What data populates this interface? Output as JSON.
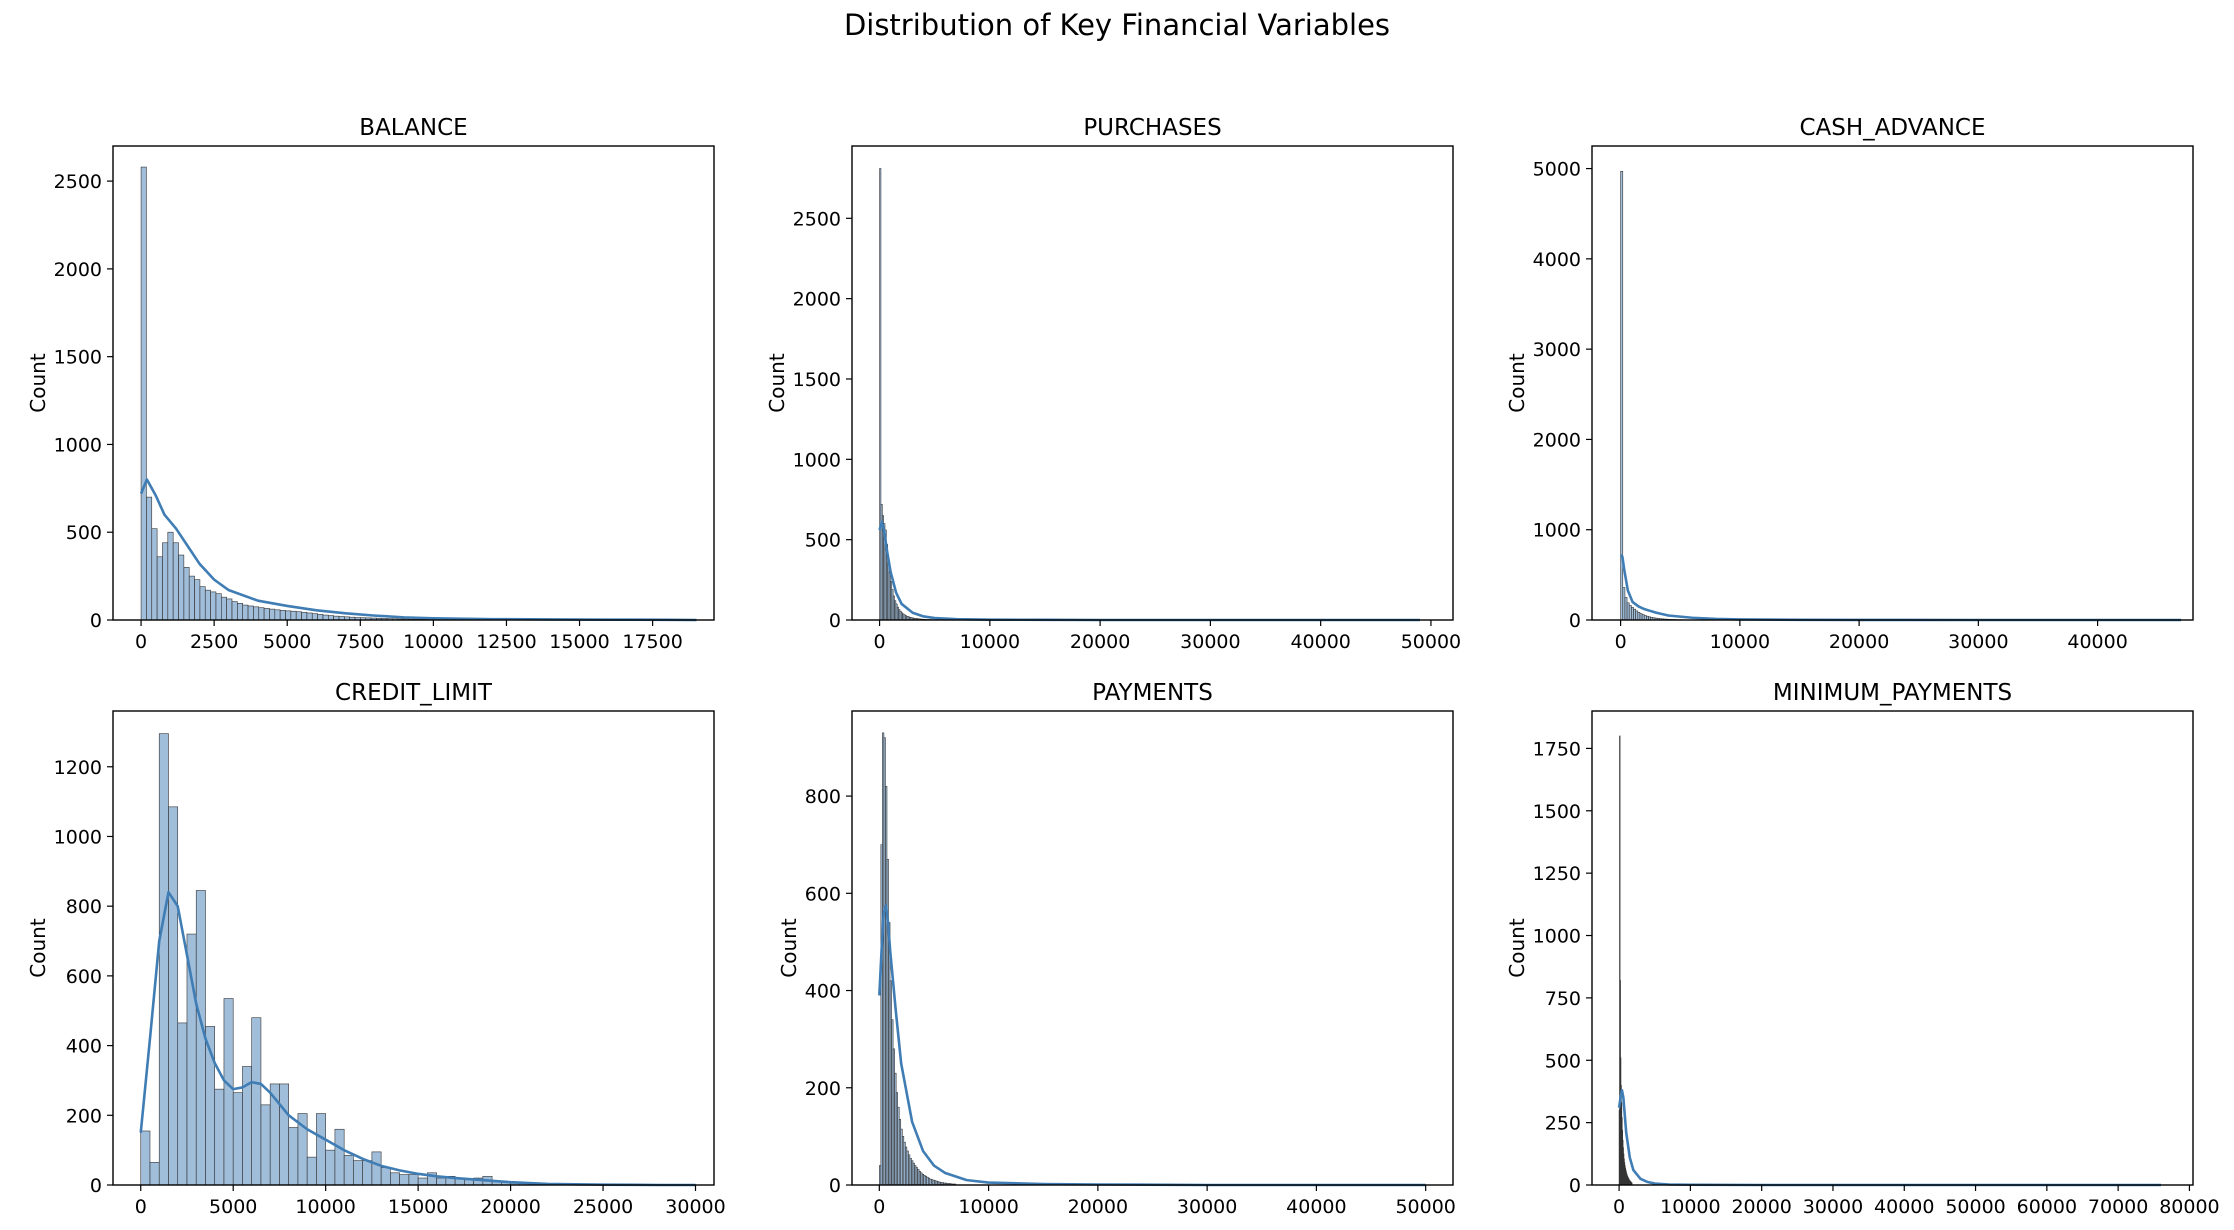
{
  "figure": {
    "title": "Distribution of Key Financial Variables"
  },
  "style": {
    "bar_fill": "#8fb1d4",
    "bar_edge": "#333333",
    "kde_color": "#3f7db4",
    "axis_color": "#000000"
  },
  "chart_data": [
    {
      "type": "histogram",
      "title": "BALANCE",
      "xlabel": "",
      "ylabel": "Count",
      "xlim": [
        -960,
        19600
      ],
      "ylim": [
        0,
        2700
      ],
      "xticks": [
        0,
        2500,
        5000,
        7500,
        10000,
        12500,
        15000,
        17500
      ],
      "yticks": [
        0,
        500,
        1000,
        1500,
        2000,
        2500
      ],
      "bin_start": 0,
      "bin_width": 183,
      "counts": [
        2580,
        700,
        520,
        360,
        440,
        500,
        440,
        370,
        300,
        250,
        230,
        190,
        170,
        160,
        150,
        130,
        120,
        105,
        95,
        85,
        80,
        75,
        70,
        66,
        62,
        58,
        55,
        52,
        50,
        47,
        44,
        40,
        36,
        32,
        28,
        25,
        22,
        20,
        18,
        16,
        14,
        13,
        12,
        11,
        10,
        9,
        8,
        7,
        6,
        6,
        5,
        5,
        4,
        4,
        3,
        3,
        3,
        2,
        2,
        2,
        2,
        2,
        1,
        1,
        1,
        1,
        1,
        1,
        1,
        1,
        1,
        1,
        1,
        1,
        1,
        1,
        1,
        1,
        1,
        1,
        1,
        1,
        1,
        1,
        1,
        1,
        1,
        1,
        1,
        1,
        1,
        1,
        1,
        1,
        1,
        1,
        1,
        1,
        1,
        1
      ],
      "kde": {
        "x": [
          0,
          200,
          500,
          800,
          1200,
          1600,
          2000,
          2500,
          3000,
          4000,
          5000,
          6000,
          7000,
          8000,
          9000,
          10000,
          12000,
          14000,
          16000,
          18000,
          19000
        ],
        "y": [
          720,
          800,
          710,
          600,
          520,
          420,
          320,
          230,
          170,
          110,
          80,
          55,
          38,
          25,
          15,
          10,
          5,
          3,
          2,
          1,
          0
        ]
      }
    },
    {
      "type": "histogram",
      "title": "PURCHASES",
      "xlabel": "",
      "ylabel": "Count",
      "xlim": [
        -2500,
        52000
      ],
      "ylim": [
        0,
        2950
      ],
      "xticks": [
        0,
        10000,
        20000,
        30000,
        40000,
        50000
      ],
      "yticks": [
        0,
        500,
        1000,
        1500,
        2000,
        2500
      ],
      "bin_start": 0,
      "bin_width": 123,
      "counts": [
        2810,
        720,
        650,
        600,
        560,
        470,
        380,
        300,
        240,
        190,
        150,
        120,
        100,
        80,
        65,
        55,
        45,
        38,
        32,
        27,
        23,
        20,
        17,
        15,
        13,
        11,
        10,
        9,
        8,
        7,
        6,
        5,
        5,
        4,
        4,
        3,
        3,
        3,
        2,
        2
      ],
      "kde": {
        "x": [
          0,
          200,
          400,
          700,
          1000,
          1500,
          2000,
          3000,
          4000,
          5000,
          7000,
          10000,
          15000,
          20000,
          30000,
          40000,
          49000
        ],
        "y": [
          560,
          610,
          560,
          420,
          300,
          170,
          100,
          45,
          22,
          12,
          5,
          2,
          1,
          0,
          0,
          0,
          0
        ]
      }
    },
    {
      "type": "histogram",
      "title": "CASH_ADVANCE",
      "xlabel": "",
      "ylabel": "Count",
      "xlim": [
        -2400,
        48000
      ],
      "ylim": [
        0,
        5250
      ],
      "xticks": [
        0,
        10000,
        20000,
        30000,
        40000
      ],
      "yticks": [
        0,
        1000,
        2000,
        3000,
        4000,
        5000
      ],
      "bin_start": 0,
      "bin_width": 180,
      "counts": [
        4970,
        360,
        250,
        190,
        160,
        140,
        120,
        100,
        85,
        70,
        60,
        50,
        42,
        35,
        30,
        25,
        21,
        18,
        15,
        13,
        11,
        9,
        8,
        7,
        6,
        5,
        4,
        4,
        3,
        3
      ],
      "kde": {
        "x": [
          0,
          150,
          300,
          600,
          1000,
          1500,
          2000,
          3000,
          4000,
          6000,
          8000,
          10000,
          15000,
          20000,
          30000,
          40000,
          47000
        ],
        "y": [
          720,
          700,
          560,
          330,
          200,
          150,
          120,
          80,
          50,
          25,
          12,
          6,
          2,
          1,
          0,
          0,
          0
        ]
      }
    },
    {
      "type": "histogram",
      "title": "CREDIT_LIMIT",
      "xlabel": "",
      "ylabel": "Count",
      "xlim": [
        -1500,
        31000
      ],
      "ylim": [
        0,
        1360
      ],
      "xticks": [
        0,
        5000,
        10000,
        15000,
        20000,
        25000,
        30000
      ],
      "yticks": [
        0,
        200,
        400,
        600,
        800,
        1000,
        1200
      ],
      "bin_start": 0,
      "bin_width": 500,
      "counts": [
        155,
        65,
        1295,
        1085,
        465,
        720,
        845,
        455,
        275,
        535,
        265,
        340,
        480,
        230,
        290,
        290,
        165,
        205,
        80,
        205,
        100,
        160,
        85,
        70,
        70,
        95,
        50,
        35,
        30,
        30,
        20,
        35,
        20,
        25,
        20,
        15,
        20,
        25,
        10,
        10,
        5,
        5,
        5,
        3,
        3,
        2,
        2,
        1,
        1,
        1,
        1,
        1,
        1,
        1,
        1,
        1,
        1,
        1,
        1,
        1
      ],
      "kde": {
        "x": [
          0,
          500,
          1000,
          1500,
          2000,
          2500,
          3000,
          3500,
          4000,
          4500,
          5000,
          5500,
          6000,
          6500,
          7000,
          8000,
          9000,
          10000,
          11000,
          12000,
          13000,
          14000,
          15000,
          16000,
          17000,
          18000,
          20000,
          22000,
          25000,
          28000,
          30000
        ],
        "y": [
          150,
          420,
          700,
          840,
          800,
          660,
          520,
          420,
          350,
          300,
          275,
          280,
          295,
          290,
          265,
          200,
          160,
          130,
          100,
          75,
          55,
          42,
          32,
          25,
          20,
          16,
          8,
          3,
          1,
          0,
          0
        ]
      }
    },
    {
      "type": "histogram",
      "title": "PAYMENTS",
      "xlabel": "",
      "ylabel": "Count",
      "xlim": [
        -2500,
        52500
      ],
      "ylim": [
        0,
        975
      ],
      "xticks": [
        0,
        10000,
        20000,
        30000,
        40000,
        50000
      ],
      "yticks": [
        0,
        200,
        400,
        600,
        800
      ],
      "bin_start": 0,
      "bin_width": 140,
      "counts": [
        40,
        700,
        930,
        920,
        820,
        670,
        540,
        420,
        340,
        280,
        230,
        190,
        160,
        135,
        115,
        100,
        88,
        78,
        70,
        62,
        55,
        50,
        45,
        40,
        36,
        32,
        28,
        25,
        22,
        20,
        18,
        16,
        14,
        12,
        11,
        10,
        9,
        8,
        7,
        6,
        5,
        5,
        4,
        4,
        3,
        3,
        3,
        2,
        2,
        2
      ],
      "kde": {
        "x": [
          0,
          200,
          400,
          600,
          800,
          1000,
          1500,
          2000,
          3000,
          4000,
          5000,
          6000,
          8000,
          10000,
          15000,
          20000,
          30000,
          40000,
          50000
        ],
        "y": [
          390,
          480,
          560,
          575,
          540,
          480,
          360,
          250,
          130,
          70,
          40,
          25,
          10,
          5,
          2,
          1,
          0,
          0,
          0
        ]
      }
    },
    {
      "type": "histogram",
      "title": "MINIMUM_PAYMENTS",
      "xlabel": "",
      "ylabel": "Count",
      "xlim": [
        -3800,
        80500
      ],
      "ylim": [
        0,
        1900
      ],
      "xticks": [
        0,
        10000,
        20000,
        30000,
        40000,
        50000,
        60000,
        70000,
        80000
      ],
      "yticks": [
        0,
        250,
        500,
        750,
        1000,
        1250,
        1500,
        1750
      ],
      "bin_start": 0,
      "bin_width": 60,
      "counts": [
        300,
        1800,
        820,
        510,
        400,
        330,
        270,
        220,
        180,
        150,
        125,
        105,
        90,
        78,
        68,
        60,
        52,
        45,
        40,
        35,
        31,
        27,
        24,
        21,
        18,
        16,
        14,
        12,
        10,
        9
      ],
      "kde": {
        "x": [
          0,
          200,
          400,
          600,
          800,
          1000,
          1500,
          2000,
          3000,
          4000,
          5000,
          7000,
          10000,
          20000,
          40000,
          60000,
          76000
        ],
        "y": [
          310,
          350,
          380,
          350,
          280,
          210,
          110,
          60,
          25,
          12,
          6,
          2,
          1,
          0,
          0,
          0,
          0
        ]
      }
    }
  ]
}
